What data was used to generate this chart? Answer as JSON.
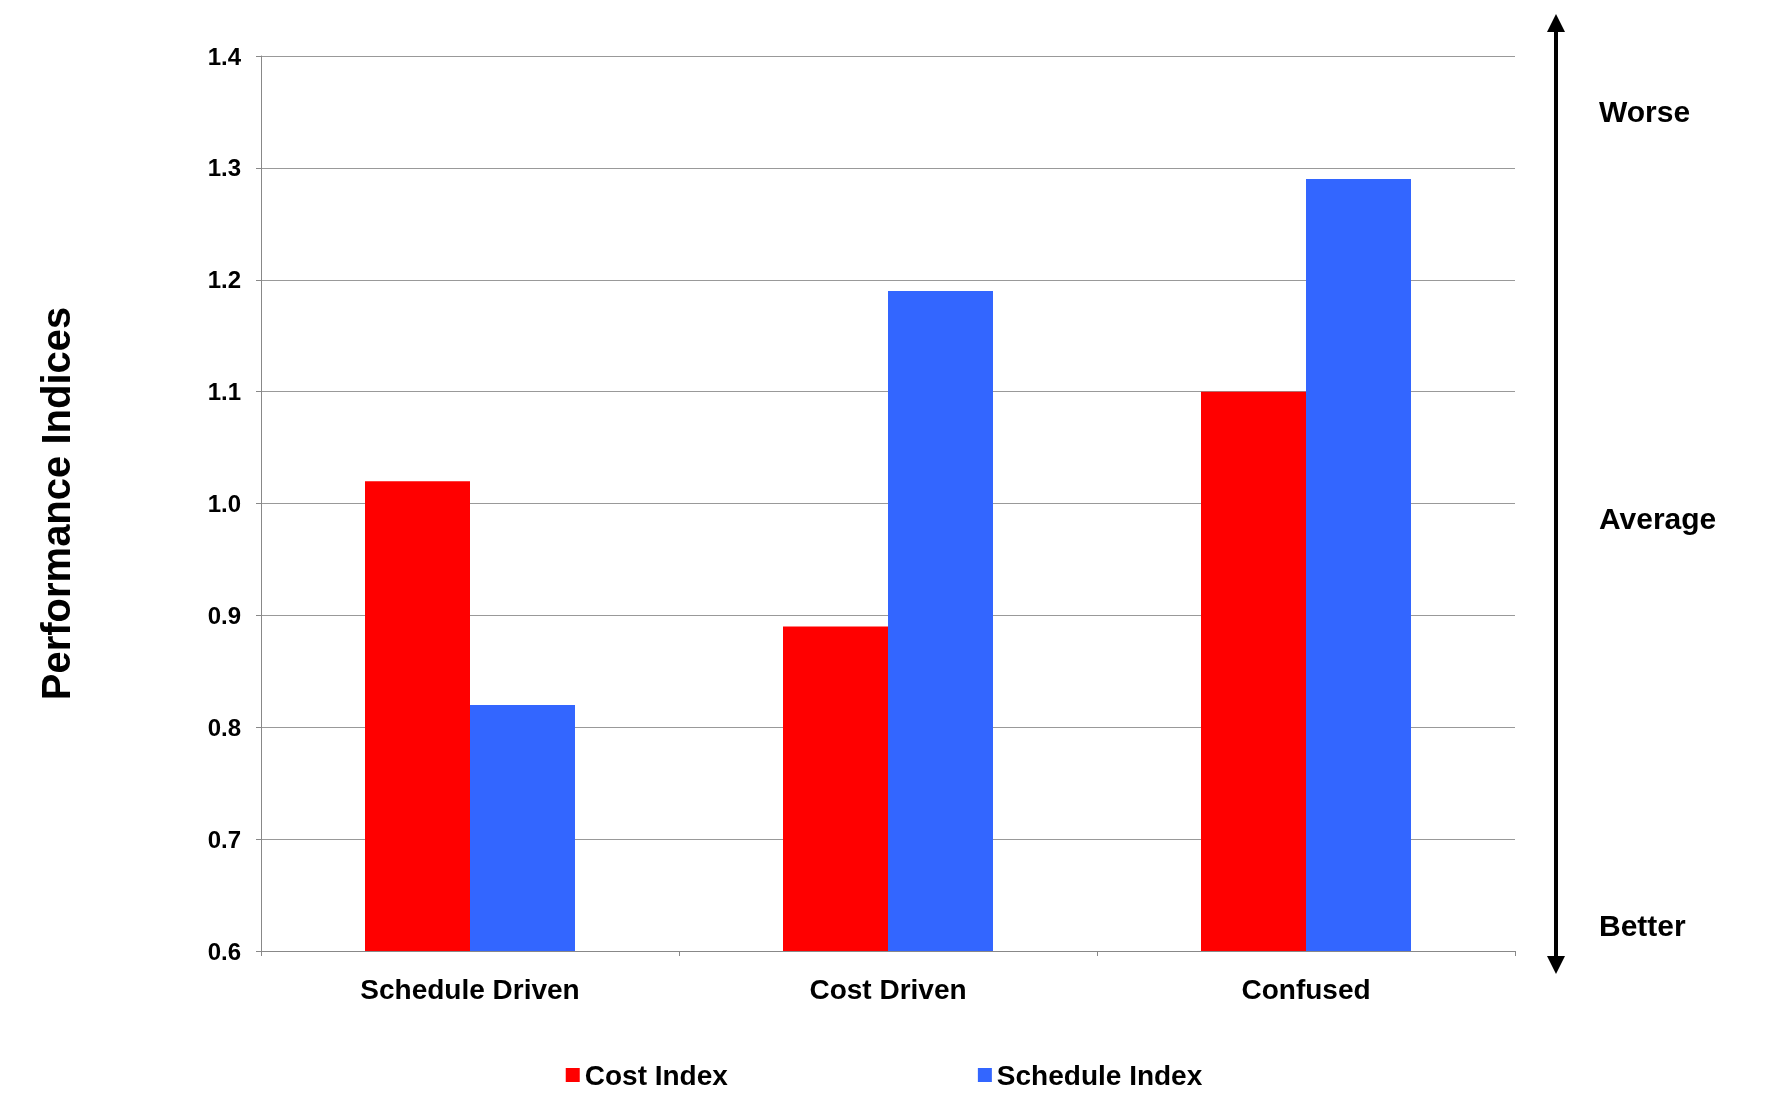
{
  "chart_data": {
    "type": "bar",
    "ylabel": "Performance Indices",
    "categories": [
      "Schedule Driven",
      "Cost Driven",
      "Confused"
    ],
    "series": [
      {
        "name": "Cost Index",
        "color": "#ff0000",
        "values": [
          1.02,
          0.89,
          1.1
        ]
      },
      {
        "name": "Schedule Index",
        "color": "#3366ff",
        "values": [
          0.82,
          1.19,
          1.29
        ]
      }
    ],
    "ylim": [
      0.6,
      1.4
    ],
    "yticks": [
      0.6,
      0.7,
      0.8,
      0.9,
      {
        "value": 1,
        "label": "1.0"
      },
      1.1,
      1.2,
      1.3,
      1.4
    ],
    "grid": "y",
    "legend": "bottom",
    "annotations": [
      "Worse",
      "Average",
      "Better"
    ]
  }
}
